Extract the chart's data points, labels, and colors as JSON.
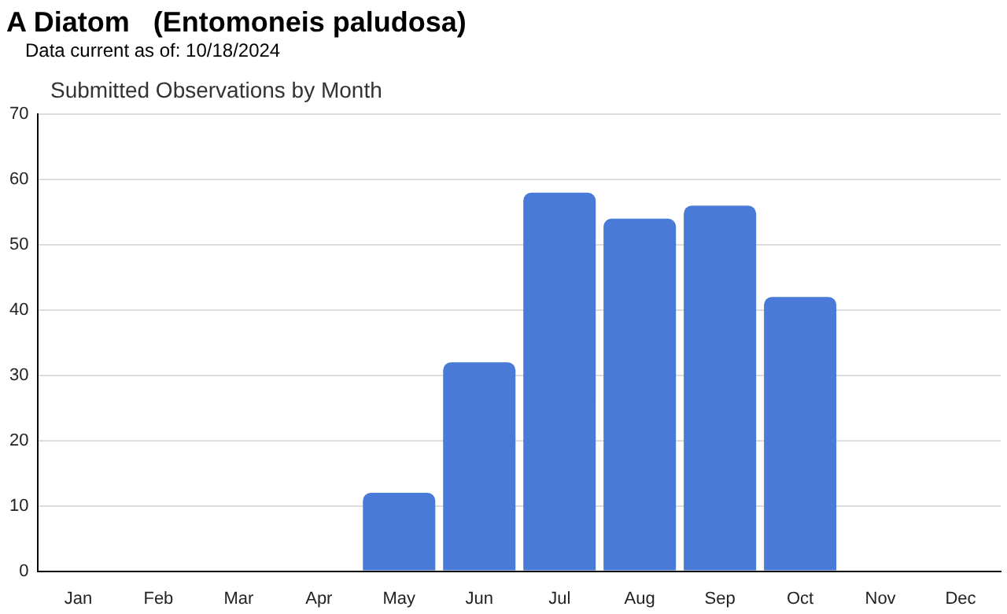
{
  "chart_data": {
    "type": "bar",
    "title": "A Diatom   (Entomoneis paludosa)",
    "subtitle": "Data current as of: 10/18/2024",
    "annotations": [
      "Submitted Observations by Month"
    ],
    "categories": [
      "Jan",
      "Feb",
      "Mar",
      "Apr",
      "May",
      "Jun",
      "Jul",
      "Aug",
      "Sep",
      "Oct",
      "Nov",
      "Dec"
    ],
    "values": [
      0,
      0,
      0,
      0,
      12,
      32,
      58,
      54,
      56,
      42,
      0,
      0
    ],
    "color": "#4a7ad8",
    "ylim": [
      0,
      70
    ],
    "yticks": [
      0,
      10,
      20,
      30,
      40,
      50,
      60,
      70
    ],
    "grid": "y"
  }
}
